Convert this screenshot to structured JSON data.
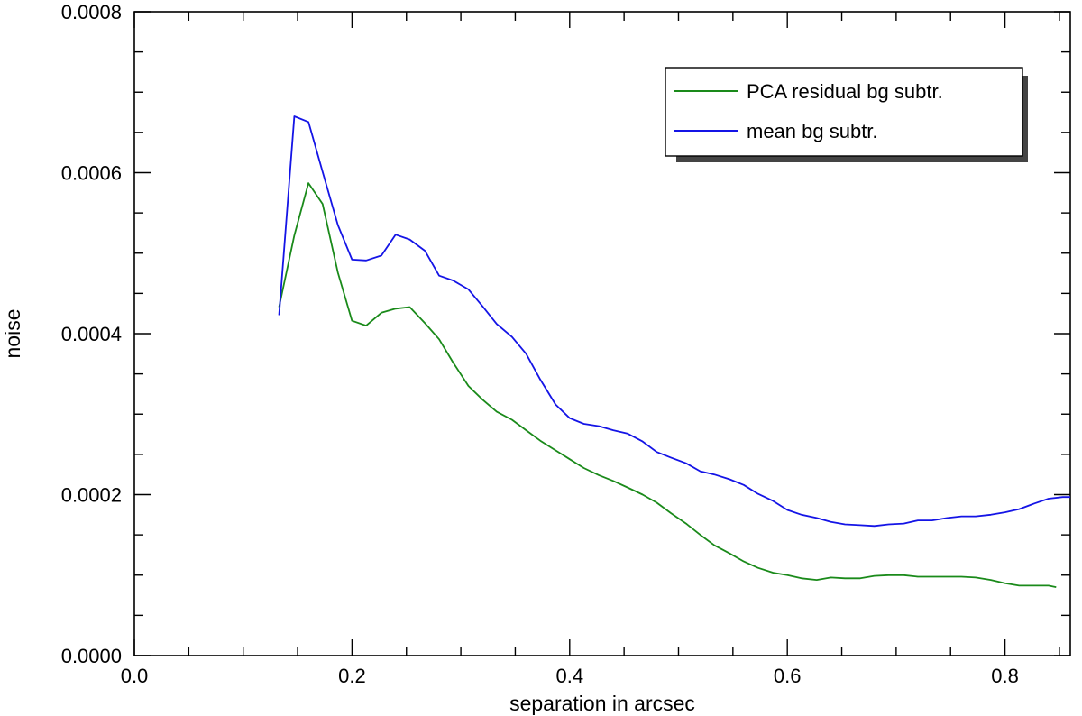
{
  "chart_data": {
    "type": "line",
    "title": "",
    "xlabel": "separation in arcsec",
    "ylabel": "noise",
    "xlim": [
      0.0,
      0.86
    ],
    "ylim": [
      0.0,
      0.0008
    ],
    "grid": false,
    "legend_position": "top-right",
    "x_ticks": [
      0.0,
      0.2,
      0.4,
      0.6,
      0.8
    ],
    "x_tick_labels": [
      "0.0",
      "0.2",
      "0.4",
      "0.6",
      "0.8"
    ],
    "y_ticks": [
      0.0,
      0.0002,
      0.0004,
      0.0006,
      0.0008
    ],
    "y_tick_labels": [
      "0.0000",
      "0.0002",
      "0.0004",
      "0.0006",
      "0.0008"
    ],
    "series": [
      {
        "name": "PCA residual bg subtr.",
        "color": "#1a8a1a",
        "x": [
          0.133,
          0.147,
          0.16,
          0.173,
          0.187,
          0.2,
          0.213,
          0.227,
          0.24,
          0.253,
          0.267,
          0.28,
          0.293,
          0.307,
          0.32,
          0.333,
          0.347,
          0.36,
          0.373,
          0.387,
          0.4,
          0.413,
          0.427,
          0.44,
          0.453,
          0.467,
          0.48,
          0.493,
          0.507,
          0.52,
          0.533,
          0.547,
          0.56,
          0.573,
          0.587,
          0.6,
          0.613,
          0.627,
          0.64,
          0.653,
          0.667,
          0.68,
          0.693,
          0.707,
          0.72,
          0.733,
          0.747,
          0.76,
          0.773,
          0.787,
          0.8,
          0.813,
          0.827,
          0.84,
          0.847
        ],
        "values": [
          0.000433,
          0.000522,
          0.000587,
          0.000561,
          0.000476,
          0.000416,
          0.00041,
          0.000426,
          0.000431,
          0.000433,
          0.000413,
          0.000393,
          0.000364,
          0.000335,
          0.000318,
          0.000303,
          0.000293,
          0.00028,
          0.000267,
          0.000255,
          0.000244,
          0.000233,
          0.000224,
          0.000217,
          0.000209,
          0.0002,
          0.00019,
          0.000177,
          0.000164,
          0.00015,
          0.000137,
          0.000127,
          0.000117,
          0.000109,
          0.000103,
          0.0001,
          9.6e-05,
          9.4e-05,
          9.7e-05,
          9.6e-05,
          9.6e-05,
          9.9e-05,
          0.0001,
          0.0001,
          9.8e-05,
          9.8e-05,
          9.8e-05,
          9.8e-05,
          9.7e-05,
          9.4e-05,
          9e-05,
          8.7e-05,
          8.7e-05,
          8.7e-05,
          8.5e-05
        ]
      },
      {
        "name": "mean bg subtr.",
        "color": "#1414e6",
        "x": [
          0.133,
          0.147,
          0.16,
          0.173,
          0.187,
          0.2,
          0.213,
          0.227,
          0.24,
          0.253,
          0.267,
          0.28,
          0.293,
          0.307,
          0.32,
          0.333,
          0.347,
          0.36,
          0.373,
          0.387,
          0.4,
          0.413,
          0.427,
          0.44,
          0.453,
          0.467,
          0.48,
          0.493,
          0.507,
          0.52,
          0.533,
          0.547,
          0.56,
          0.573,
          0.587,
          0.6,
          0.613,
          0.627,
          0.64,
          0.653,
          0.667,
          0.68,
          0.693,
          0.707,
          0.72,
          0.733,
          0.747,
          0.76,
          0.773,
          0.787,
          0.8,
          0.813,
          0.827,
          0.84,
          0.853,
          0.86
        ],
        "values": [
          0.000423,
          0.00067,
          0.000663,
          0.000601,
          0.000535,
          0.000492,
          0.000491,
          0.000497,
          0.000523,
          0.000517,
          0.000503,
          0.000472,
          0.000466,
          0.000455,
          0.000434,
          0.000412,
          0.000396,
          0.000375,
          0.000343,
          0.000312,
          0.000295,
          0.000288,
          0.000285,
          0.00028,
          0.000276,
          0.000266,
          0.000253,
          0.000246,
          0.000239,
          0.000229,
          0.000225,
          0.000219,
          0.000212,
          0.000201,
          0.000192,
          0.000181,
          0.000175,
          0.000171,
          0.000166,
          0.000163,
          0.000162,
          0.000161,
          0.000163,
          0.000164,
          0.000168,
          0.000168,
          0.000171,
          0.000173,
          0.000173,
          0.000175,
          0.000178,
          0.000182,
          0.000189,
          0.000195,
          0.000197,
          0.000197
        ]
      }
    ]
  }
}
